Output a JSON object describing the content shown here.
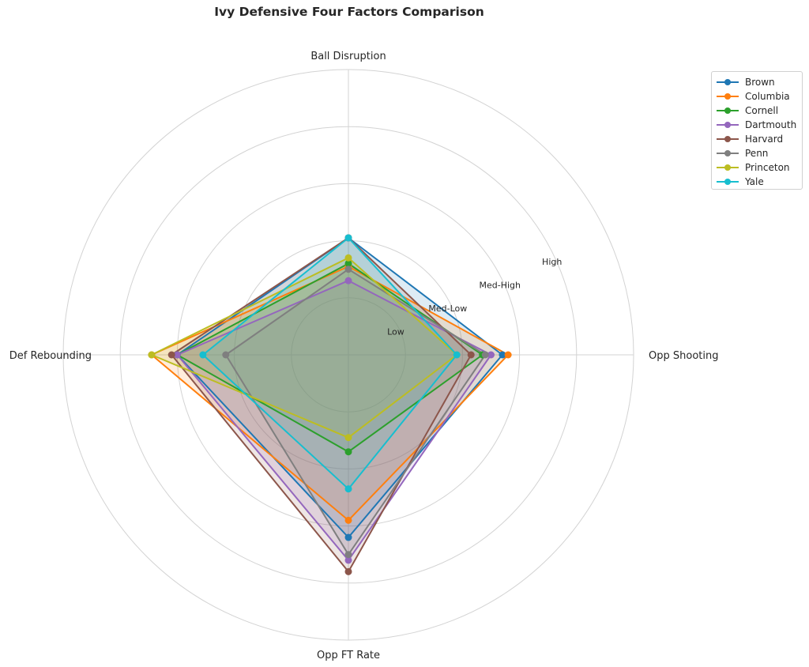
{
  "chart_data": {
    "type": "radar",
    "title": "Ivy Defensive Four Factors Comparison",
    "axes": [
      "Ball Disruption",
      "Opp Shooting",
      "Opp FT Rate",
      "Def Rebounding"
    ],
    "ring_labels": [
      "Low",
      "Med-Low",
      "Med-High",
      "High"
    ],
    "r_range": [
      0,
      5
    ],
    "grid": true,
    "legend_position": "upper-right",
    "series": [
      {
        "name": "Brown",
        "color": "#1f77b4",
        "values": [
          2.05,
          2.7,
          3.2,
          3.0
        ]
      },
      {
        "name": "Columbia",
        "color": "#ff7f0e",
        "values": [
          1.55,
          2.8,
          2.9,
          3.45
        ]
      },
      {
        "name": "Cornell",
        "color": "#2ca02c",
        "values": [
          1.6,
          2.35,
          1.7,
          3.0
        ]
      },
      {
        "name": "Dartmouth",
        "color": "#9467bd",
        "values": [
          1.3,
          2.5,
          3.6,
          3.0
        ]
      },
      {
        "name": "Harvard",
        "color": "#8c564b",
        "values": [
          2.05,
          2.15,
          3.8,
          3.1
        ]
      },
      {
        "name": "Penn",
        "color": "#7f7f7f",
        "values": [
          1.5,
          2.4,
          3.5,
          2.15
        ]
      },
      {
        "name": "Princeton",
        "color": "#bcbd22",
        "values": [
          1.7,
          1.9,
          1.45,
          3.45
        ]
      },
      {
        "name": "Yale",
        "color": "#17becf",
        "values": [
          2.05,
          1.9,
          2.35,
          2.55
        ]
      }
    ]
  }
}
